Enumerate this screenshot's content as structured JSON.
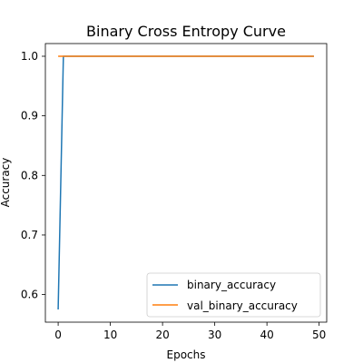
{
  "chart_data": {
    "type": "line",
    "title": "Binary Cross Entropy Curve",
    "xlabel": "Epochs",
    "ylabel": "Accuracy",
    "xlim": [
      -2.45,
      51.45
    ],
    "ylim": [
      0.5537,
      1.0213
    ],
    "xticks": [
      0,
      10,
      20,
      30,
      40,
      50
    ],
    "yticks": [
      0.6,
      0.7,
      0.8,
      0.9,
      1.0
    ],
    "xtick_labels": [
      "0",
      "10",
      "20",
      "30",
      "40",
      "50"
    ],
    "ytick_labels": [
      "0.6",
      "0.7",
      "0.8",
      "0.9",
      "1.0"
    ],
    "grid": false,
    "legend_position": "lower-right",
    "series": [
      {
        "name": "binary_accuracy",
        "color": "#1f77b4",
        "x": [
          0,
          1,
          49
        ],
        "values": [
          0.575,
          1.0,
          1.0
        ]
      },
      {
        "name": "val_binary_accuracy",
        "color": "#ff7f0e",
        "x": [
          0,
          49
        ],
        "values": [
          1.0,
          1.0
        ]
      }
    ]
  }
}
